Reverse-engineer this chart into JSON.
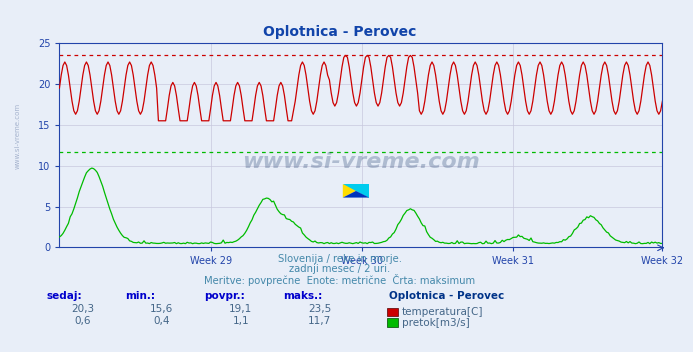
{
  "title": "Oplotnica - Perovec",
  "title_color": "#1144aa",
  "background_color": "#e8eef8",
  "plot_bg_color": "#e8eef8",
  "x_tick_labels": [
    "Week 29",
    "Week 30",
    "Week 31",
    "Week 32"
  ],
  "n_points": 336,
  "temp_color": "#cc0000",
  "flow_color": "#00bb00",
  "temp_max_dashed_color": "#cc0000",
  "flow_max_dashed_color": "#00bb00",
  "temp_max": 23.5,
  "flow_max": 11.7,
  "temp_min": 15.6,
  "flow_min": 0.4,
  "temp_avg": 19.1,
  "flow_avg": 1.1,
  "temp_current": 20.3,
  "flow_current": 0.6,
  "ymin": 0,
  "ymax": 25,
  "yticks": [
    0,
    5,
    10,
    15,
    20,
    25
  ],
  "watermark": "www.si-vreme.com",
  "subtitle1": "Slovenija / reke in morje.",
  "subtitle2": "zadnji mesec / 2 uri.",
  "subtitle3": "Meritve: povprečne  Enote: metrične  Črta: maksimum",
  "subtitle_color": "#4488aa",
  "legend_title": "Oplotnica - Perovec",
  "legend_title_color": "#003388",
  "footer_label_color": "#0000cc",
  "footer_value_color": "#446688",
  "grid_color": "#c8c8dd",
  "axis_color": "#2244aa",
  "spine_color": "#2244aa",
  "left_text_color": "#8899aa"
}
